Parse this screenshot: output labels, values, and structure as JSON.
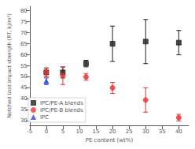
{
  "chart_data": {
    "type": "scatter",
    "xlabel": "PE content (wt%)",
    "ylabel": "Notched Izod impact strength (RT, kJ/m²)",
    "series": [
      {
        "name": "IPC/PE-A blends",
        "color": "#222222",
        "marker": "square",
        "x": [
          0,
          5,
          12,
          20,
          30,
          40
        ],
        "values": [
          52.0,
          52.0,
          56.0,
          65.0,
          66.0,
          65.5
        ],
        "yerr": [
          2.0,
          2.5,
          1.5,
          8.0,
          10.0,
          5.5
        ]
      },
      {
        "name": "IPC/PE-B blends",
        "color": "#ee3333",
        "marker": "circle",
        "x": [
          0,
          5,
          12,
          20,
          30,
          40
        ],
        "values": [
          52.0,
          50.5,
          50.0,
          45.0,
          39.5,
          31.5
        ],
        "yerr": [
          2.0,
          4.0,
          1.5,
          2.5,
          5.5,
          1.5
        ]
      },
      {
        "name": "IPC",
        "color": "#3344cc",
        "marker": "triangle",
        "x": [
          0
        ],
        "values": [
          48.0
        ],
        "yerr": [
          1.5
        ]
      }
    ],
    "xlim": [
      -5,
      43
    ],
    "ylim": [
      28,
      82
    ],
    "xticks": [
      -5,
      0,
      5,
      10,
      15,
      20,
      25,
      30,
      35,
      40
    ],
    "yticks": [
      30,
      35,
      40,
      45,
      50,
      55,
      60,
      65,
      70,
      75,
      80
    ],
    "grid": false,
    "legend": "lower left"
  }
}
